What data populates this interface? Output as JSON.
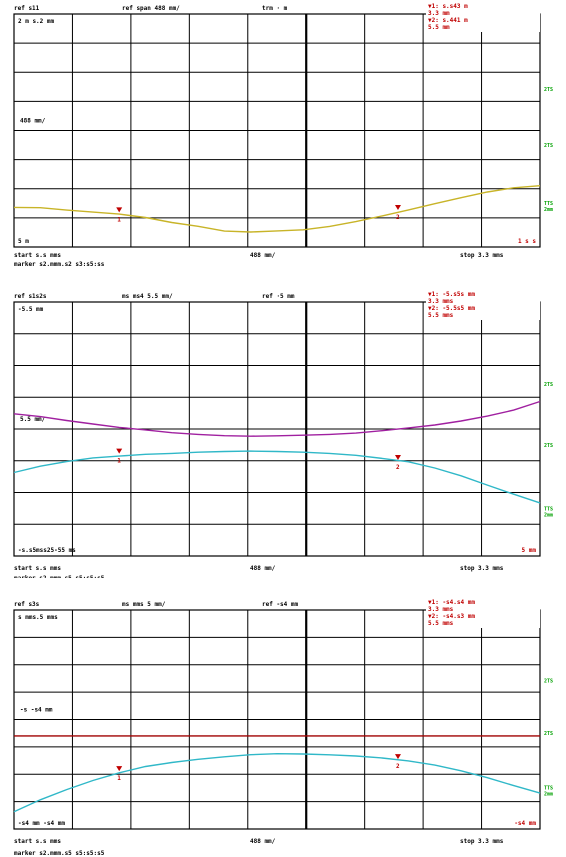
{
  "colors": {
    "grid": "#000000",
    "marker": "#c00000",
    "side_label": "#00a000",
    "trace_yellow": "#c8b428",
    "trace_magenta": "#a020a0",
    "trace_cyan": "#30b8c8",
    "trace_red_line": "#a00000"
  },
  "chart_data": [
    {
      "type": "line",
      "header": {
        "left": "ref  s11",
        "center": "ref span  488 mm/",
        "right": "trm ·  m"
      },
      "marker_box": {
        "line1": "▼1:   s.s43  m",
        "line2": "        3.3  mm",
        "line3": "▼2:   s.441  m",
        "line4": "        5.5  mm"
      },
      "ref_label": "2  m  s.2 mm",
      "mid_label": "488 mm/",
      "bottom_left_label": "5  m",
      "bottom_right_label": "1  s  s",
      "side_labels": [
        "2TS",
        "2TS",
        "TTS\n2mm"
      ],
      "footer_line1": {
        "left": "start   s.s mms",
        "center": "488 mm/",
        "right": "stop  3.3 mms"
      },
      "footer_line2": "marker    s2.mmm.s2  s3:s5:ss",
      "ylim": [
        0,
        10
      ],
      "xlim": [
        0,
        10
      ],
      "series": [
        {
          "color_key": "trace_yellow",
          "x": [
            0,
            0.5,
            1,
            1.5,
            2,
            2.5,
            3,
            3.5,
            4,
            4.5,
            5,
            5.5,
            6,
            6.5,
            7,
            7.5,
            8,
            8.5,
            9,
            9.5,
            10
          ],
          "y": [
            1.7,
            1.7,
            1.6,
            1.5,
            1.4,
            1.25,
            1.05,
            0.9,
            0.7,
            0.65,
            0.68,
            0.72,
            0.88,
            1.1,
            1.35,
            1.6,
            1.85,
            2.1,
            2.35,
            2.55,
            2.65
          ]
        }
      ],
      "markers": [
        {
          "label": "1",
          "x": 2,
          "y": 1.4
        },
        {
          "label": "2",
          "x": 7.3,
          "y": 1.5
        }
      ]
    },
    {
      "type": "line",
      "header": {
        "left": "ref  s1s2s",
        "center": "ms  ms4  5.5 mm/",
        "right": "ref  ·5 mm"
      },
      "marker_box": {
        "line1": "▼1:   -5.s5s  mm",
        "line2": "        3.3  mms",
        "line3": "▼2:   -5.5s5  mm",
        "line4": "        5.5  mms"
      },
      "ref_label": "-5.5  mm",
      "mid_label": "5.5  mm/",
      "bottom_left_label": "-s.s5mss25-55  ms",
      "bottom_right_label": "5  mm",
      "side_labels": [
        "2TS",
        "2TS",
        "TTS\n2mm"
      ],
      "footer_line1": {
        "left": "start   s.s mms",
        "center": "488 mm/",
        "right": "stop  3.3 mms"
      },
      "footer_line2": "marker    s2.mmm.s5  s5:s5:s5",
      "ylim": [
        0,
        10
      ],
      "xlim": [
        0,
        10
      ],
      "series": [
        {
          "color_key": "trace_magenta",
          "x": [
            0,
            0.5,
            1,
            1.5,
            2,
            2.5,
            3,
            3.5,
            4,
            4.5,
            5,
            5.5,
            6,
            6.5,
            7,
            7.5,
            8,
            8.5,
            9,
            9.5,
            10
          ],
          "y": [
            5.6,
            5.5,
            5.35,
            5.2,
            5.05,
            4.95,
            4.85,
            4.8,
            4.75,
            4.72,
            4.72,
            4.74,
            4.78,
            4.85,
            4.95,
            5.05,
            5.15,
            5.3,
            5.5,
            5.75,
            6.1
          ]
        },
        {
          "color_key": "trace_cyan",
          "x": [
            0,
            0.5,
            1,
            1.5,
            2,
            2.5,
            3,
            3.5,
            4,
            4.5,
            5,
            5.5,
            6,
            6.5,
            7,
            7.5,
            8,
            8.5,
            9,
            9.5,
            10
          ],
          "y": [
            3.3,
            3.55,
            3.72,
            3.85,
            3.92,
            4.0,
            4.05,
            4.1,
            4.12,
            4.12,
            4.1,
            4.08,
            4.05,
            3.98,
            3.85,
            3.7,
            3.45,
            3.15,
            2.8,
            2.45,
            2.1
          ]
        }
      ],
      "markers": [
        {
          "label": "1",
          "x": 2,
          "y": 3.95
        },
        {
          "label": "2",
          "x": 7.3,
          "y": 3.7
        }
      ]
    },
    {
      "type": "line",
      "header": {
        "left": "ref  s3s",
        "center": "ms  mms  5 mm/",
        "right": "ref  -s4 mm"
      },
      "marker_box": {
        "line1": "▼1:   -s4.s4 mm",
        "line2": "        3.3  mms",
        "line3": "▼2:   -s4.s3 mm",
        "line4": "        5.5  mms"
      },
      "ref_label": "s  mms.5 mms",
      "mid_label": "-s  -s4  mm",
      "bottom_left_label": "-s4  mm  -s4  mm",
      "bottom_right_label": "-s4  mm",
      "side_labels": [
        "2TS",
        "2TS",
        "TTS\n2mm"
      ],
      "footer_line1": {
        "left": "start   s.s mms",
        "center": "488 mm/",
        "right": "stop  3.3 mms"
      },
      "footer_line2": "marker    s2.mmm.s5  s5:s5:s5",
      "ylim": [
        0,
        10
      ],
      "xlim": [
        0,
        10
      ],
      "series": [
        {
          "color_key": "trace_red_line",
          "x": [
            0,
            10
          ],
          "y": [
            4.25,
            4.25
          ]
        },
        {
          "color_key": "trace_cyan",
          "x": [
            0,
            0.5,
            1,
            1.5,
            2,
            2.5,
            3,
            3.5,
            4,
            4.5,
            5,
            5.5,
            6,
            6.5,
            7,
            7.5,
            8,
            8.5,
            9,
            9.5,
            10
          ],
          "y": [
            0.8,
            1.35,
            1.8,
            2.2,
            2.55,
            2.85,
            3.05,
            3.2,
            3.3,
            3.38,
            3.42,
            3.42,
            3.4,
            3.35,
            3.25,
            3.1,
            2.9,
            2.65,
            2.35,
            2.0,
            1.65
          ]
        }
      ],
      "markers": [
        {
          "label": "1",
          "x": 2,
          "y": 2.55
        },
        {
          "label": "2",
          "x": 7.3,
          "y": 3.1
        }
      ]
    }
  ]
}
